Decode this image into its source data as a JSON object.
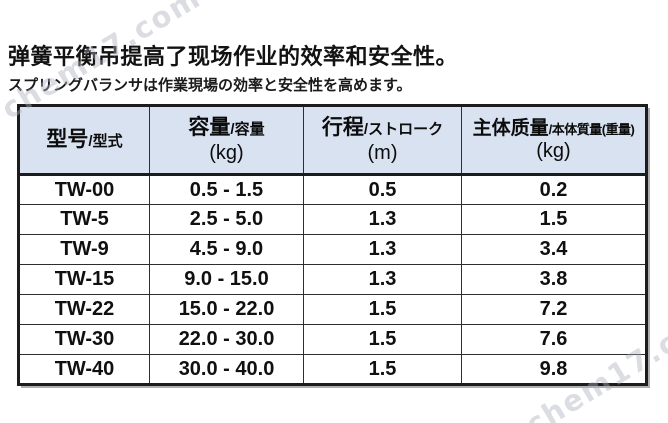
{
  "watermark": {
    "text": "chem17.com"
  },
  "header": {
    "title": "弹簧平衡吊提高了现场作业的效率和安全性。",
    "subtitle": "スプリングバランサは作業現場の効率と安全性を高めます。"
  },
  "table": {
    "columns": [
      {
        "main": "型号",
        "sub": "/型式",
        "unit": ""
      },
      {
        "main": "容量",
        "sub": "/容量",
        "unit": "(kg)"
      },
      {
        "main": "行程",
        "sub": "/ストローク",
        "unit": "(m)"
      },
      {
        "main": "主体质量",
        "sub": "/本体質量(重量)",
        "unit": "(kg)"
      }
    ],
    "rows": [
      {
        "model": "TW-00",
        "capacity": "0.5 - 1.5",
        "stroke": "0.5",
        "weight": "0.2"
      },
      {
        "model": "TW-5",
        "capacity": "2.5 - 5.0",
        "stroke": "1.3",
        "weight": "1.5"
      },
      {
        "model": "TW-9",
        "capacity": "4.5 - 9.0",
        "stroke": "1.3",
        "weight": "3.4"
      },
      {
        "model": "TW-15",
        "capacity": "9.0 - 15.0",
        "stroke": "1.3",
        "weight": "3.8"
      },
      {
        "model": "TW-22",
        "capacity": "15.0 - 22.0",
        "stroke": "1.5",
        "weight": "7.2"
      },
      {
        "model": "TW-30",
        "capacity": "22.0 - 30.0",
        "stroke": "1.5",
        "weight": "7.6"
      },
      {
        "model": "TW-40",
        "capacity": "30.0 - 40.0",
        "stroke": "1.5",
        "weight": "9.8"
      }
    ]
  },
  "colors": {
    "header_bg": "#d9e2f1",
    "outer_border": "#1c1c1c",
    "inner_border": "#2e2e2e",
    "watermark": "#aab0bc"
  }
}
